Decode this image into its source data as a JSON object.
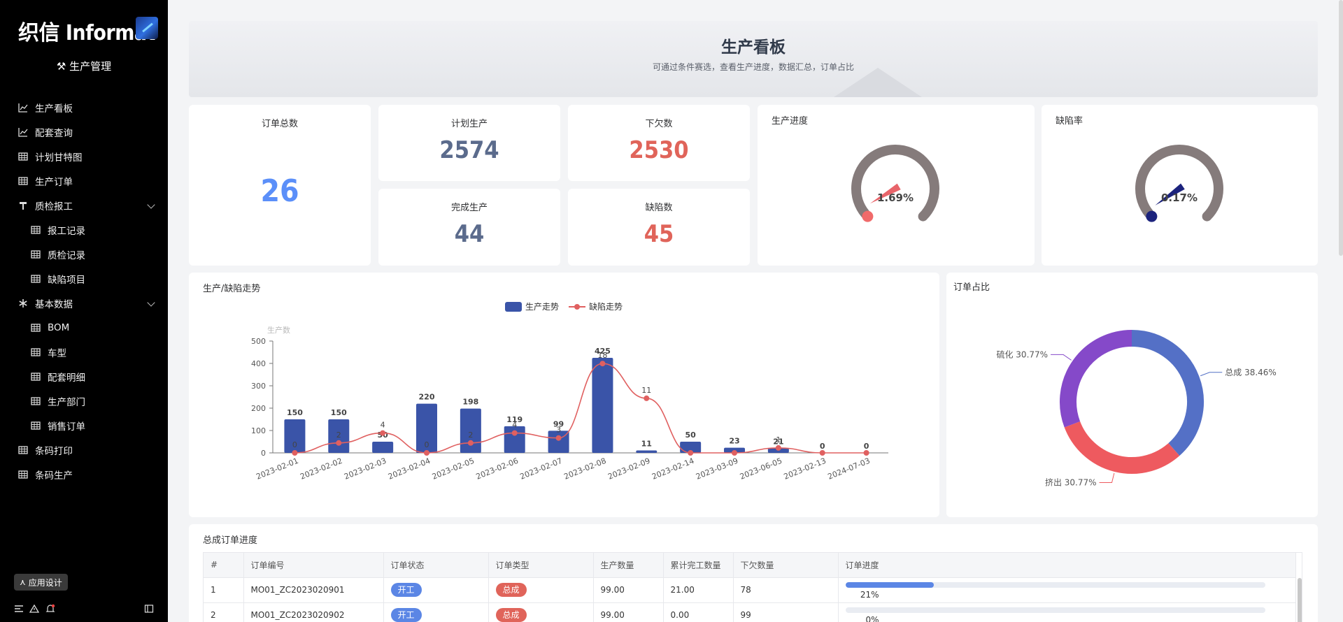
{
  "app": {
    "logo_text": "织信 Informat",
    "title": "生产管理"
  },
  "sidebar": {
    "items": [
      {
        "label": "生产看板",
        "icon": "line-chart-icon",
        "level": 0
      },
      {
        "label": "配套查询",
        "icon": "line-chart-icon",
        "level": 0
      },
      {
        "label": "计划甘特图",
        "icon": "table-icon",
        "level": 0
      },
      {
        "label": "生产订单",
        "icon": "table-icon",
        "level": 0
      },
      {
        "label": "质检报工",
        "icon": "hammer-icon",
        "level": 0,
        "expanded": true
      },
      {
        "label": "报工记录",
        "icon": "table-icon",
        "level": 1
      },
      {
        "label": "质检记录",
        "icon": "table-icon",
        "level": 1
      },
      {
        "label": "缺陷项目",
        "icon": "table-icon",
        "level": 1
      },
      {
        "label": "基本数据",
        "icon": "asterisk-icon",
        "level": 0,
        "expanded": true
      },
      {
        "label": "BOM",
        "icon": "table-icon",
        "level": 1
      },
      {
        "label": "车型",
        "icon": "table-icon",
        "level": 1
      },
      {
        "label": "配套明细",
        "icon": "table-icon",
        "level": 1
      },
      {
        "label": "生产部门",
        "icon": "table-icon",
        "level": 1
      },
      {
        "label": "销售订单",
        "icon": "table-icon",
        "level": 1
      },
      {
        "label": "条码打印",
        "icon": "table-icon",
        "level": 0
      },
      {
        "label": "条码生产",
        "icon": "table-icon",
        "level": 0
      }
    ],
    "design_button": "应用设计"
  },
  "header": {
    "title": "生产看板",
    "subtitle": "可通过条件赛选，查看生产进度，数据汇总，订单占比"
  },
  "stats": {
    "order_total": {
      "label": "订单总数",
      "value": "26",
      "color": "#5b8ff9"
    },
    "planned": {
      "label": "计划生产",
      "value": "2574",
      "color": "#5b6b8c"
    },
    "shortfall": {
      "label": "下欠数",
      "value": "2530",
      "color": "#e0645a"
    },
    "completed": {
      "label": "完成生产",
      "value": "44",
      "color": "#5b6b8c"
    },
    "defects": {
      "label": "缺陷数",
      "value": "45",
      "color": "#e0645a"
    }
  },
  "gauges": {
    "progress": {
      "label": "生产进度",
      "value_text": "1.69%",
      "fraction": 0.0169,
      "needle_color": "#e8646a",
      "dot_color": "#f06a6a"
    },
    "defect_rate": {
      "label": "缺陷率",
      "value_text": "0.17%",
      "fraction": 0.0017,
      "needle_color": "#1c237d",
      "dot_color": "#1c237d"
    }
  },
  "trend": {
    "title": "生产/缺陷走势",
    "legend_bar": "生产走势",
    "legend_line": "缺陷走势",
    "y_axis_name": "生产数",
    "chart_data": {
      "type": "bar",
      "categories": [
        "2023-02-01",
        "2023-02-02",
        "2023-02-03",
        "2023-02-04",
        "2023-02-05",
        "2023-02-06",
        "2023-02-07",
        "2023-02-08",
        "2023-02-09",
        "2023-02-14",
        "2023-03-09",
        "2023-06-05",
        "2023-02-13",
        "2024-07-03"
      ],
      "series": [
        {
          "name": "生产走势",
          "type": "bar",
          "values": [
            150,
            150,
            50,
            220,
            198,
            119,
            99,
            425,
            11,
            50,
            23,
            21,
            0,
            0
          ],
          "labels": [
            "150",
            "150",
            "50",
            "220",
            "198",
            "119",
            "99",
            "425",
            "11",
            "",
            "23",
            "21",
            "0",
            "0"
          ]
        },
        {
          "name": "缺陷走势",
          "type": "line",
          "values": [
            0,
            2,
            4,
            0,
            2,
            4,
            3,
            18,
            11,
            0,
            0,
            1,
            0,
            0
          ],
          "labels": [
            "0",
            "2",
            "4",
            "0",
            "2",
            "4",
            "3",
            "18",
            "11",
            "",
            "",
            "1",
            "",
            ""
          ]
        }
      ],
      "ylim": [
        0,
        500
      ],
      "yticks": [
        0,
        100,
        200,
        300,
        400,
        500
      ],
      "line_scale_note": "",
      "bar_color": "#3a54a8",
      "line_color": "#e06060"
    }
  },
  "donut": {
    "title": "订单占比",
    "chart_data": {
      "type": "pie",
      "slices": [
        {
          "name": "总成",
          "label": "总成 38.46%",
          "value": 38.46,
          "color": "#5470c6"
        },
        {
          "name": "挤出",
          "label": "挤出 30.77%",
          "value": 30.77,
          "color": "#ee5a5f"
        },
        {
          "name": "硫化",
          "label": "硫化 30.77%",
          "value": 30.77,
          "color": "#8549c9"
        }
      ]
    }
  },
  "table": {
    "title": "总成订单进度",
    "columns": [
      "#",
      "订单编号",
      "订单状态",
      "订单类型",
      "生产数量",
      "累计完工数量",
      "下欠数量",
      "订单进度"
    ],
    "rows": [
      {
        "idx": "1",
        "code": "MO01_ZC2023020901",
        "status": "开工",
        "type": "总成",
        "qty": "99.00",
        "done": "21.00",
        "short": "78",
        "progress": 0.21,
        "progress_text": "21%"
      },
      {
        "idx": "2",
        "code": "MO01_ZC2023020902",
        "status": "开工",
        "type": "总成",
        "qty": "99.00",
        "done": "0.00",
        "short": "99",
        "progress": 0,
        "progress_text": "0%"
      }
    ],
    "status_color": "#5b86e5",
    "type_color": "#e0645a"
  }
}
